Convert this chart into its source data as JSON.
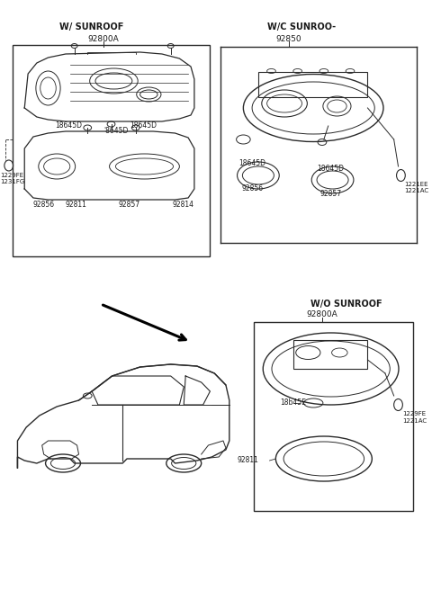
{
  "bg_color": "#ffffff",
  "line_color": "#2a2a2a",
  "text_color": "#1a1a1a",
  "labels": {
    "w_sunroof": "W/ SUNROOF",
    "wo_sunroof_top": "W/C SUNROO-",
    "wo_sunroof_bot": "W/O SUNROOF",
    "p92800A_tl": "92800A",
    "p92850": "92850",
    "p92800A_br": "92800A",
    "p18645D_a": "18645D",
    "p18645D_b": "'8645D",
    "p18645D_c": "18645D",
    "p92856_tl": "92856",
    "p92811_tl": "92811",
    "p92857_tl": "92857",
    "p92814": "92814",
    "p18645D_tr1": "18645D",
    "p18645D_tr2": "18645D",
    "p92856_tr": "92856",
    "p92857_tr": "92857",
    "p1229FE_tl": "1229FE",
    "p1231FG": "1231FG",
    "p1221EE": "1221EE",
    "p1221AC_tr": "1221AC",
    "p18b45E": "18b45E",
    "p92811_br": "92811",
    "p1229FE_br": "1229FE",
    "p1221AC_br": "1221AC"
  }
}
